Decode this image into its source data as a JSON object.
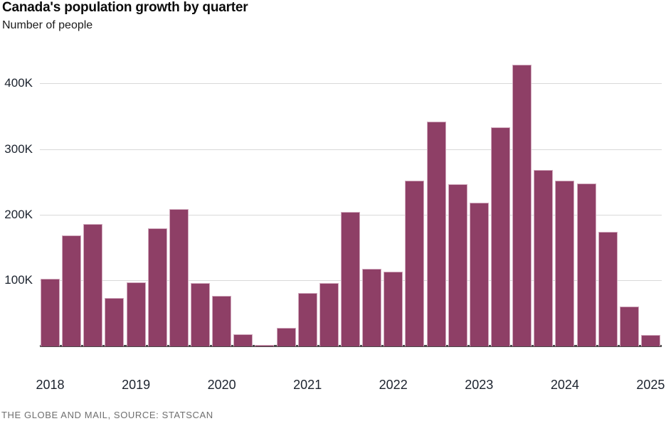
{
  "header": {
    "title": "Canada's population growth by quarter",
    "subtitle": "Number of people"
  },
  "footer": {
    "credit": "THE GLOBE AND MAIL, SOURCE: STATSCAN"
  },
  "chart_data": {
    "type": "bar",
    "title": "Canada's population growth by quarter",
    "ylabel": "Number of people",
    "xlabel": "",
    "x": [
      "2018 Q1",
      "2018 Q2",
      "2018 Q3",
      "2018 Q4",
      "2019 Q1",
      "2019 Q2",
      "2019 Q3",
      "2019 Q4",
      "2020 Q1",
      "2020 Q2",
      "2020 Q3",
      "2020 Q4",
      "2021 Q1",
      "2021 Q2",
      "2021 Q3",
      "2021 Q4",
      "2022 Q1",
      "2022 Q2",
      "2022 Q3",
      "2022 Q4",
      "2023 Q1",
      "2023 Q2",
      "2023 Q3",
      "2023 Q4",
      "2024 Q1",
      "2024 Q2",
      "2024 Q3",
      "2024 Q4",
      "2025 Q1"
    ],
    "values": [
      103000,
      169000,
      186000,
      74000,
      98000,
      180000,
      209000,
      97000,
      77000,
      19000,
      2000,
      28000,
      81000,
      96000,
      205000,
      118000,
      114000,
      252000,
      342000,
      247000,
      219000,
      334000,
      429000,
      269000,
      253000,
      248000,
      174000,
      61000,
      17000
    ],
    "ylim": [
      0,
      455000
    ],
    "ytick_values": [
      100000,
      200000,
      300000,
      400000
    ],
    "ytick_labels": [
      "100K",
      "200K",
      "300K",
      "400K"
    ],
    "xtick_labels": [
      "2018",
      "2019",
      "2020",
      "2021",
      "2022",
      "2023",
      "2024",
      "2025"
    ],
    "xtick_every": 4,
    "grid": "horizontal",
    "legend": "none",
    "bar_color": "#8e3f66",
    "bar_border_color": "#d2aabe",
    "grid_color": "#d9d9d9",
    "axis_color": "#4a4a4a"
  }
}
